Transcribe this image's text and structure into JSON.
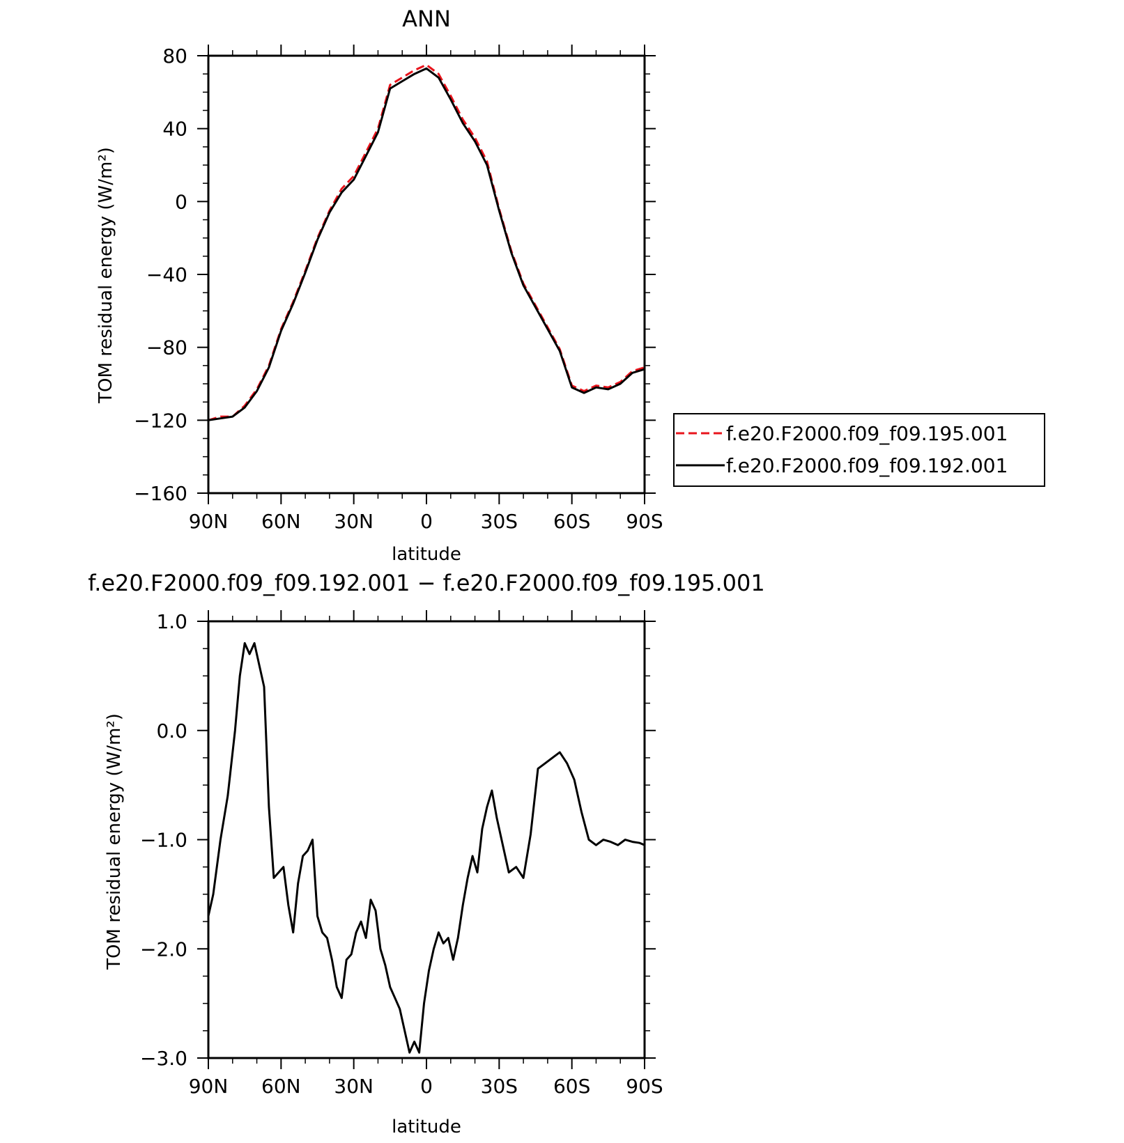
{
  "chart_data": [
    {
      "type": "line",
      "title": "ANN",
      "xlabel": "latitude",
      "ylabel": "TOM residual energy (W/m²)",
      "xlim": [
        90,
        -90
      ],
      "ylim": [
        -160,
        80
      ],
      "x_ticks": [
        90,
        60,
        30,
        0,
        -30,
        -60,
        -90
      ],
      "x_tick_labels": [
        "90N",
        "60N",
        "30N",
        "0",
        "30S",
        "60S",
        "90S"
      ],
      "y_ticks": [
        80,
        40,
        0,
        -40,
        -80,
        -120,
        -160
      ],
      "y_tick_labels": [
        "80",
        "40",
        "0",
        "−40",
        "−80",
        "−120",
        "−160"
      ],
      "legend_position": "right",
      "x": [
        90,
        85,
        80,
        75,
        70,
        65,
        60,
        55,
        50,
        45,
        40,
        35,
        30,
        25,
        20,
        15,
        10,
        5,
        0,
        -5,
        -10,
        -15,
        -20,
        -25,
        -30,
        -35,
        -40,
        -45,
        -50,
        -55,
        -60,
        -65,
        -70,
        -75,
        -80,
        -85,
        -90
      ],
      "series": [
        {
          "name": "f.e20.F2000.f09_f09.195.001",
          "color": "#e8141c",
          "dash": "dashed",
          "values": [
            -120,
            -118,
            -118,
            -112,
            -103,
            -90,
            -70,
            -55,
            -38,
            -20,
            -5,
            7,
            14,
            27,
            40,
            64,
            68,
            72,
            75,
            70,
            58,
            45,
            35,
            22,
            -4,
            -27,
            -45,
            -57,
            -69,
            -81,
            -101,
            -104,
            -101,
            -102,
            -99,
            -93,
            -91
          ]
        },
        {
          "name": "f.e20.F2000.f09_f09.192.001",
          "color": "#000000",
          "dash": "solid",
          "values": [
            -120,
            -119,
            -118,
            -113,
            -104,
            -91,
            -71,
            -56,
            -39,
            -21,
            -6,
            5,
            12,
            25,
            38,
            62,
            66,
            70,
            73,
            68,
            56,
            43,
            33,
            20,
            -5,
            -28,
            -46,
            -58,
            -70,
            -82,
            -102,
            -105,
            -102,
            -103,
            -100,
            -94,
            -92
          ]
        }
      ]
    },
    {
      "type": "line",
      "title": "f.e20.F2000.f09_f09.192.001 − f.e20.F2000.f09_f09.195.001",
      "xlabel": "latitude",
      "ylabel": "TOM residual energy (W/m²)",
      "xlim": [
        90,
        -90
      ],
      "ylim": [
        -3.0,
        1.0
      ],
      "x_ticks": [
        90,
        60,
        30,
        0,
        -30,
        -60,
        -90
      ],
      "x_tick_labels": [
        "90N",
        "60N",
        "30N",
        "0",
        "30S",
        "60S",
        "90S"
      ],
      "y_ticks": [
        1.0,
        0.0,
        -1.0,
        -2.0,
        -3.0
      ],
      "y_tick_labels": [
        "1.0",
        "0.0",
        "−1.0",
        "−2.0",
        "−3.0"
      ],
      "x": [
        90,
        88,
        85,
        82,
        79,
        77,
        75,
        73,
        71,
        69,
        67,
        65,
        63,
        61,
        59,
        57,
        55,
        53,
        51,
        49,
        47,
        45,
        43,
        41,
        39,
        37,
        35,
        33,
        31,
        29,
        27,
        25,
        23,
        21,
        19,
        17,
        15,
        13,
        11,
        9,
        7,
        5,
        3,
        1,
        -1,
        -3,
        -5,
        -7,
        -9,
        -11,
        -13,
        -15,
        -17,
        -19,
        -21,
        -23,
        -25,
        -27,
        -29,
        -31,
        -34,
        -37,
        -40,
        -43,
        -46,
        -49,
        -52,
        -55,
        -58,
        -61,
        -64,
        -67,
        -70,
        -73,
        -76,
        -79,
        -82,
        -85,
        -88,
        -90
      ],
      "series": [
        {
          "name": "",
          "color": "#000000",
          "dash": "solid",
          "values": [
            -1.7,
            -1.5,
            -1.0,
            -0.6,
            0.0,
            0.5,
            0.8,
            0.7,
            0.8,
            0.6,
            0.4,
            -0.7,
            -1.35,
            -1.3,
            -1.25,
            -1.6,
            -1.85,
            -1.4,
            -1.15,
            -1.1,
            -1.0,
            -1.7,
            -1.85,
            -1.9,
            -2.1,
            -2.35,
            -2.45,
            -2.1,
            -2.05,
            -1.85,
            -1.75,
            -1.9,
            -1.55,
            -1.65,
            -2.0,
            -2.15,
            -2.35,
            -2.45,
            -2.55,
            -2.75,
            -2.95,
            -2.85,
            -2.95,
            -2.5,
            -2.2,
            -2.0,
            -1.85,
            -1.95,
            -1.9,
            -2.1,
            -1.9,
            -1.6,
            -1.35,
            -1.15,
            -1.3,
            -0.9,
            -0.7,
            -0.55,
            -0.8,
            -1.0,
            -1.3,
            -1.25,
            -1.35,
            -0.95,
            -0.35,
            -0.3,
            -0.25,
            -0.2,
            -0.3,
            -0.45,
            -0.75,
            -1.0,
            -1.05,
            -1.0,
            -1.02,
            -1.05,
            -1.0,
            -1.02,
            -1.03,
            -1.05
          ]
        }
      ]
    }
  ]
}
